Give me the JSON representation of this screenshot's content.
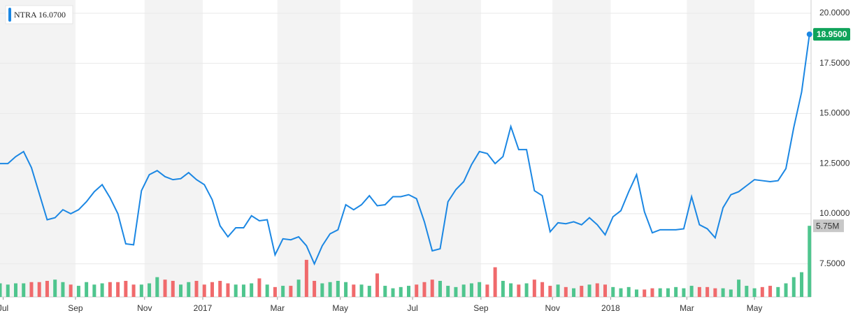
{
  "chart_data": {
    "type": "line",
    "x": [
      0,
      1,
      2,
      3,
      4,
      5,
      6,
      7,
      8,
      9,
      10,
      11,
      12,
      13,
      14,
      15,
      16,
      17,
      18,
      19,
      20,
      21,
      22,
      23,
      24,
      25,
      26,
      27,
      28,
      29,
      30,
      31,
      32,
      33,
      34,
      35,
      36,
      37,
      38,
      39,
      40,
      41,
      42,
      43,
      44,
      45,
      46,
      47,
      48,
      49,
      50,
      51,
      52,
      53,
      54,
      55,
      56,
      57,
      58,
      59,
      60,
      61,
      62,
      63,
      64,
      65,
      66,
      67,
      68,
      69,
      70,
      71,
      72,
      73,
      74,
      75,
      76,
      77,
      78,
      79,
      80,
      81,
      82,
      83,
      84,
      85,
      86,
      87,
      88,
      89,
      90,
      91,
      92,
      93,
      94,
      95,
      96,
      97,
      98,
      99,
      100,
      101,
      102,
      103
    ],
    "xlim": [
      0,
      103.2
    ],
    "xticks": [
      {
        "value": 0.4,
        "label": "Jul"
      },
      {
        "value": 9.6,
        "label": "Sep"
      },
      {
        "value": 18.4,
        "label": "Nov"
      },
      {
        "value": 25.8,
        "label": "2017"
      },
      {
        "value": 35.3,
        "label": "Mar"
      },
      {
        "value": 43.3,
        "label": "May"
      },
      {
        "value": 52.5,
        "label": "Jul"
      },
      {
        "value": 61.2,
        "label": "Sep"
      },
      {
        "value": 70.3,
        "label": "Nov"
      },
      {
        "value": 77.7,
        "label": "2018"
      },
      {
        "value": 87.4,
        "label": "Mar"
      },
      {
        "value": 96.0,
        "label": "May"
      }
    ],
    "ylim": [
      5.85,
      20.66
    ],
    "yticks": [
      {
        "value": 7.5,
        "label": "7.5000"
      },
      {
        "value": 10,
        "label": "10.0000"
      },
      {
        "value": 12.5,
        "label": "12.5000"
      },
      {
        "value": 15,
        "label": "15.0000"
      },
      {
        "value": 17.5,
        "label": "17.5000"
      },
      {
        "value": 20,
        "label": "20.0000"
      }
    ],
    "y2lim": [
      0,
      24
    ],
    "grid": true,
    "up_color": "#4fc58e",
    "down_color": "#f06a6c",
    "series": [
      {
        "name": "NTRA",
        "color": "#1b87e3",
        "values": [
          12.5,
          12.5,
          12.85,
          13.1,
          12.3,
          11.0,
          9.7,
          9.8,
          10.2,
          10.0,
          10.2,
          10.6,
          11.1,
          11.45,
          10.8,
          10.0,
          8.5,
          8.45,
          11.15,
          11.95,
          12.15,
          11.85,
          11.7,
          11.75,
          12.05,
          11.7,
          11.45,
          10.7,
          9.4,
          8.85,
          9.3,
          9.3,
          9.9,
          9.65,
          9.7,
          7.95,
          8.75,
          8.7,
          8.85,
          8.4,
          7.5,
          8.4,
          9.0,
          9.2,
          10.45,
          10.2,
          10.45,
          10.9,
          10.4,
          10.45,
          10.85,
          10.85,
          10.95,
          10.75,
          9.6,
          8.15,
          8.25,
          10.6,
          11.2,
          11.6,
          12.45,
          13.1,
          13.0,
          12.5,
          12.85,
          14.35,
          13.2,
          13.2,
          11.15,
          10.9,
          9.1,
          9.55,
          9.5,
          9.6,
          9.45,
          9.8,
          9.45,
          8.95,
          9.85,
          10.15,
          11.1,
          11.95,
          10.1,
          9.05,
          9.2,
          9.2,
          9.2,
          9.25,
          10.85,
          9.45,
          9.25,
          8.8,
          10.3,
          10.95,
          11.1,
          11.4,
          11.7,
          11.65,
          11.6,
          11.65,
          12.25,
          14.3,
          16.07,
          18.95
        ],
        "value_labels": [
          null,
          null,
          null,
          null,
          null,
          null,
          null,
          null,
          null,
          null,
          null,
          null,
          null,
          null,
          null,
          null,
          null,
          null,
          null,
          null,
          null,
          null,
          null,
          null,
          null,
          null,
          null,
          null,
          null,
          null,
          null,
          null,
          null,
          null,
          null,
          null,
          null,
          null,
          null,
          null,
          null,
          null,
          null,
          null,
          null,
          null,
          null,
          null,
          null,
          null,
          null,
          null,
          null,
          null,
          null,
          null,
          null,
          null,
          null,
          null,
          null,
          null,
          null,
          null,
          null,
          null,
          null,
          null,
          null,
          null,
          null,
          null,
          null,
          null,
          null,
          null,
          null,
          null,
          null,
          null,
          null,
          null,
          null,
          null,
          null,
          null,
          null,
          null,
          null,
          null,
          null,
          null,
          null,
          null,
          null,
          null,
          null,
          null,
          null,
          null,
          null,
          null,
          "16.0700",
          "18.9500"
        ]
      },
      {
        "axis": "y2",
        "values": [
          1.1,
          1.0,
          1.1,
          1.1,
          1.2,
          1.2,
          1.3,
          1.4,
          1.2,
          1.0,
          0.9,
          1.2,
          1.0,
          1.1,
          1.2,
          1.2,
          1.3,
          1.0,
          1.0,
          1.1,
          1.6,
          1.4,
          1.3,
          1.0,
          1.2,
          1.3,
          1.0,
          1.2,
          1.3,
          1.1,
          1.0,
          1.0,
          1.1,
          1.5,
          1.0,
          0.8,
          0.9,
          0.9,
          1.4,
          3.0,
          1.3,
          1.1,
          1.2,
          1.3,
          1.2,
          1.0,
          1.0,
          0.9,
          1.9,
          0.9,
          0.7,
          0.8,
          0.9,
          1.0,
          1.2,
          1.4,
          1.3,
          0.9,
          0.8,
          1.0,
          1.1,
          1.2,
          1.0,
          2.4,
          1.3,
          1.1,
          1.0,
          1.1,
          1.4,
          1.2,
          0.9,
          1.0,
          0.8,
          0.7,
          0.9,
          1.0,
          1.1,
          1.0,
          0.8,
          0.7,
          0.8,
          0.6,
          0.6,
          0.7,
          0.7,
          0.7,
          0.8,
          0.7,
          0.9,
          0.8,
          0.8,
          0.7,
          0.7,
          0.6,
          1.4,
          0.9,
          0.7,
          0.8,
          0.9,
          0.8,
          1.1,
          1.6,
          2.0,
          5.75
        ],
        "value_labels": [
          null,
          null,
          null,
          null,
          null,
          null,
          null,
          null,
          null,
          null,
          null,
          null,
          null,
          null,
          null,
          null,
          null,
          null,
          null,
          null,
          null,
          null,
          null,
          null,
          null,
          null,
          null,
          null,
          null,
          null,
          null,
          null,
          null,
          null,
          null,
          null,
          null,
          null,
          null,
          null,
          null,
          null,
          null,
          null,
          null,
          null,
          null,
          null,
          null,
          null,
          null,
          null,
          null,
          null,
          null,
          null,
          null,
          null,
          null,
          null,
          null,
          null,
          null,
          null,
          null,
          null,
          null,
          null,
          null,
          null,
          null,
          null,
          null,
          null,
          null,
          null,
          null,
          null,
          null,
          null,
          null,
          null,
          null,
          null,
          null,
          null,
          null,
          null,
          null,
          null,
          null,
          null,
          null,
          null,
          null,
          null,
          null,
          null,
          null,
          null,
          null,
          null,
          null,
          "5.75M"
        ]
      }
    ]
  }
}
